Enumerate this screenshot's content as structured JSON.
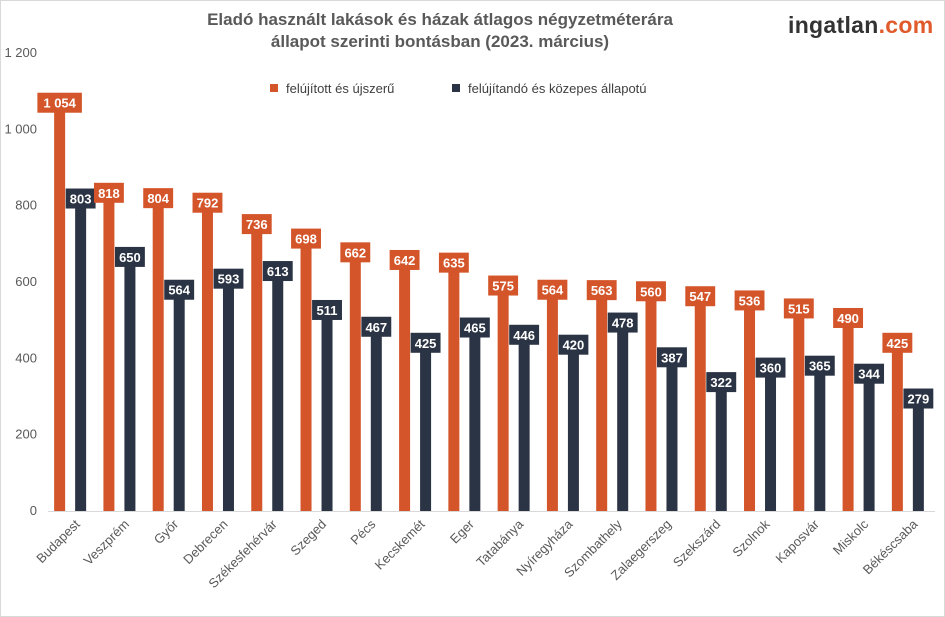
{
  "chart_data": {
    "type": "bar",
    "title": "Eladó használt lakások és házak átlagos négyzetméterára",
    "subtitle": "állapot szerinti bontásban (2023. március)",
    "xlabel": "",
    "ylabel": "",
    "ylim": [
      0,
      1200
    ],
    "yticks": [
      0,
      200,
      400,
      600,
      800,
      1000,
      1200
    ],
    "ytick_labels": [
      "0",
      "200",
      "400",
      "600",
      "800",
      "1 000",
      "1 200"
    ],
    "grid": false,
    "legend_position": "top",
    "categories": [
      "Budapest",
      "Veszprém",
      "Győr",
      "Debrecen",
      "Székesfehérvár",
      "Szeged",
      "Pécs",
      "Kecskemét",
      "Eger",
      "Tatabánya",
      "Nyíregyháza",
      "Szombathely",
      "Zalaegerszeg",
      "Szekszárd",
      "Szolnok",
      "Kaposvár",
      "Miskolc",
      "Békéscsaba"
    ],
    "series": [
      {
        "name": "felújított és újszerű",
        "color": "#d4552a",
        "values": [
          1054,
          818,
          804,
          792,
          736,
          698,
          662,
          642,
          635,
          575,
          564,
          563,
          560,
          547,
          536,
          515,
          490,
          425
        ],
        "labels": [
          "1 054",
          "818",
          "804",
          "792",
          "736",
          "698",
          "662",
          "642",
          "635",
          "575",
          "564",
          "563",
          "560",
          "547",
          "536",
          "515",
          "490",
          "425"
        ]
      },
      {
        "name": "felújítandó és közepes állapotú",
        "color": "#2b3444",
        "values": [
          803,
          650,
          564,
          593,
          613,
          511,
          467,
          425,
          465,
          446,
          420,
          478,
          387,
          322,
          360,
          365,
          344,
          279
        ],
        "labels": [
          "803",
          "650",
          "564",
          "593",
          "613",
          "511",
          "467",
          "425",
          "465",
          "446",
          "420",
          "478",
          "387",
          "322",
          "360",
          "365",
          "344",
          "279"
        ]
      }
    ]
  },
  "logo": {
    "part1": "ingatlan",
    "part2": ".com"
  },
  "colors": {
    "axis": "#d9d9d9",
    "text": "#595959",
    "accent": "#e05a2b"
  }
}
